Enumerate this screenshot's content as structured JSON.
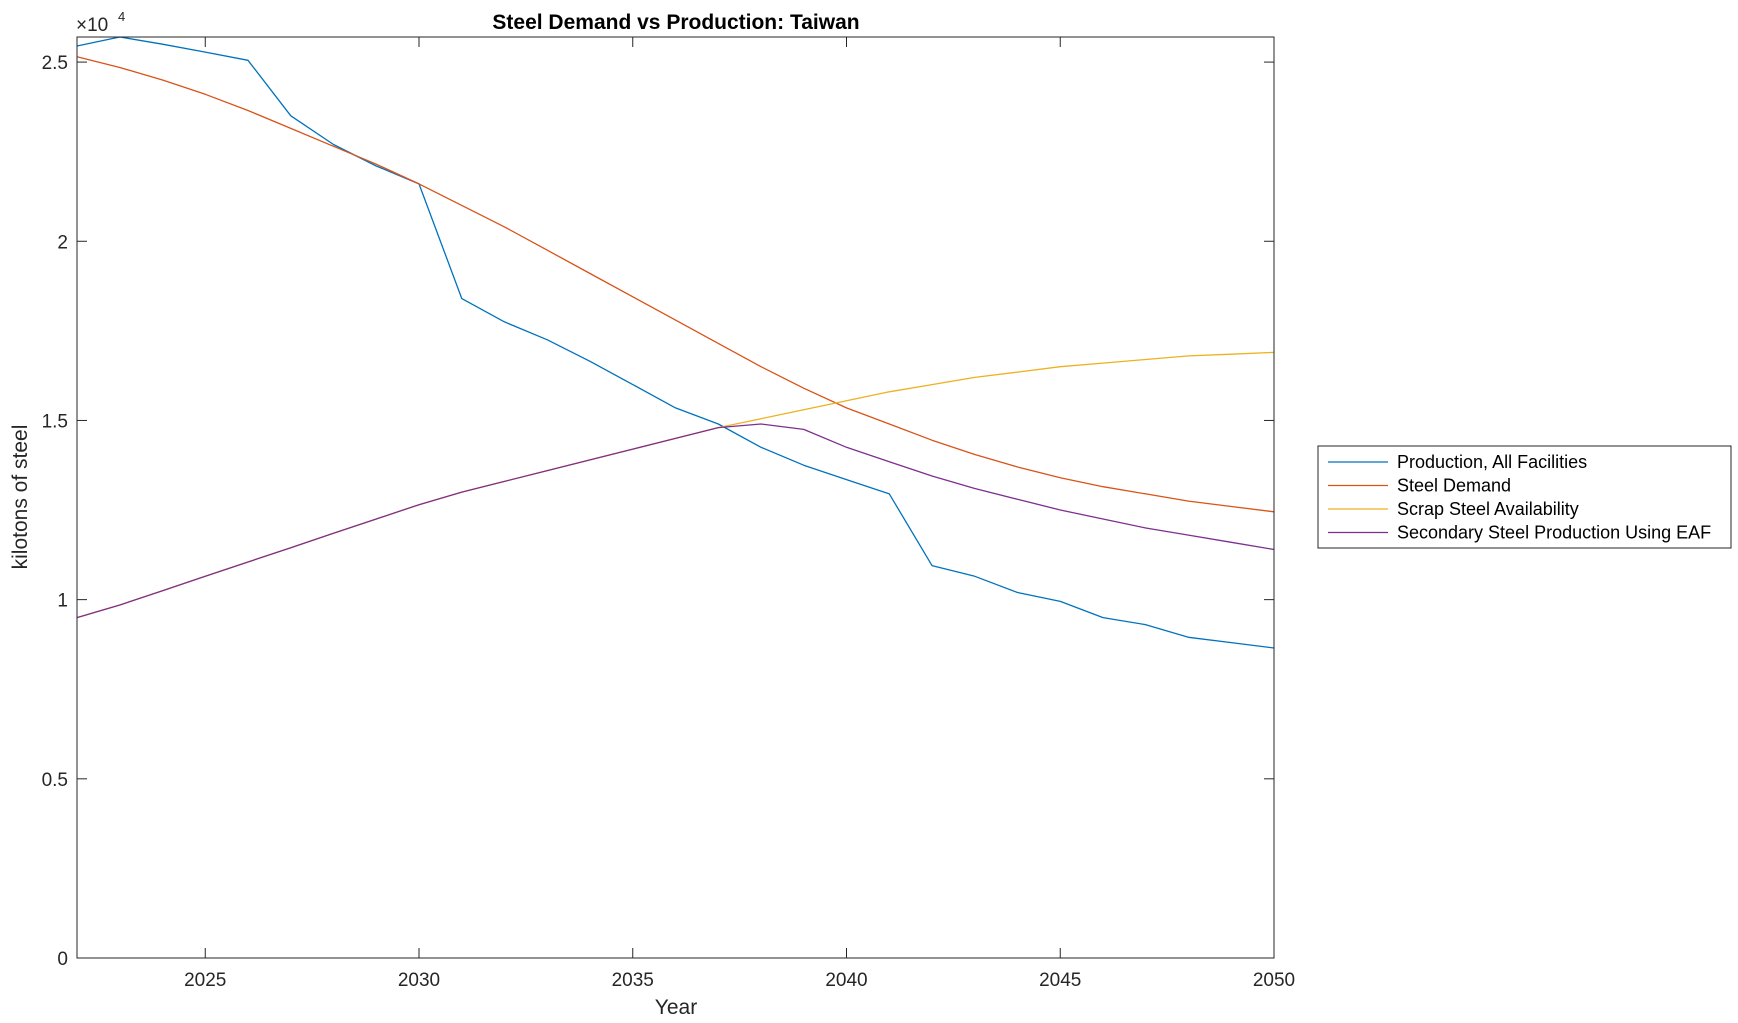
{
  "chart_data": {
    "type": "line",
    "title": "Steel Demand vs Production: Taiwan",
    "xlabel": "Year",
    "ylabel": "kilotons of steel",
    "xlim": [
      2022,
      2050
    ],
    "ylim": [
      0,
      25700
    ],
    "xticks": [
      2025,
      2030,
      2035,
      2040,
      2045,
      2050
    ],
    "yticks": [
      0,
      5000,
      10000,
      15000,
      20000,
      25000
    ],
    "ytick_labels": [
      "0",
      "0.5",
      "1",
      "1.5",
      "2",
      "2.5"
    ],
    "y_exponent_base": "×10",
    "y_exponent": "4",
    "grid": false,
    "legend_position": "outside-right",
    "x": [
      2022,
      2023,
      2024,
      2025,
      2026,
      2027,
      2028,
      2029,
      2030,
      2031,
      2032,
      2033,
      2034,
      2035,
      2036,
      2037,
      2038,
      2039,
      2040,
      2041,
      2042,
      2043,
      2044,
      2045,
      2046,
      2047,
      2048,
      2049,
      2050
    ],
    "series": [
      {
        "name": "Production, All Facilities",
        "color": "#0072BD",
        "values": [
          25450,
          25700,
          25500,
          25280,
          25050,
          23500,
          22700,
          22100,
          21600,
          18400,
          17750,
          17250,
          16650,
          16000,
          15350,
          14900,
          14250,
          13750,
          13350,
          12950,
          10950,
          10650,
          10200,
          9950,
          9500,
          9300,
          8950,
          8800,
          8650
        ]
      },
      {
        "name": "Steel Demand",
        "color": "#D95319",
        "values": [
          25150,
          24850,
          24500,
          24100,
          23650,
          23150,
          22650,
          22150,
          21600,
          21000,
          20400,
          19750,
          19100,
          18450,
          17800,
          17150,
          16500,
          15900,
          15350,
          14900,
          14450,
          14050,
          13700,
          13400,
          13150,
          12950,
          12750,
          12600,
          12450
        ]
      },
      {
        "name": "Scrap Steel Availability",
        "color": "#EDB120",
        "values": [
          9500,
          9850,
          10250,
          10650,
          11050,
          11450,
          11850,
          12250,
          12650,
          13000,
          13300,
          13600,
          13900,
          14200,
          14500,
          14800,
          15050,
          15300,
          15550,
          15800,
          16000,
          16200,
          16350,
          16500,
          16600,
          16700,
          16800,
          16850,
          16900
        ]
      },
      {
        "name": "Secondary Steel Production Using EAF",
        "color": "#7E2F8E",
        "values": [
          9500,
          9850,
          10250,
          10650,
          11050,
          11450,
          11850,
          12250,
          12650,
          13000,
          13300,
          13600,
          13900,
          14200,
          14500,
          14800,
          14900,
          14750,
          14250,
          13850,
          13450,
          13100,
          12800,
          12500,
          12250,
          12000,
          11800,
          11600,
          11400
        ]
      }
    ]
  }
}
